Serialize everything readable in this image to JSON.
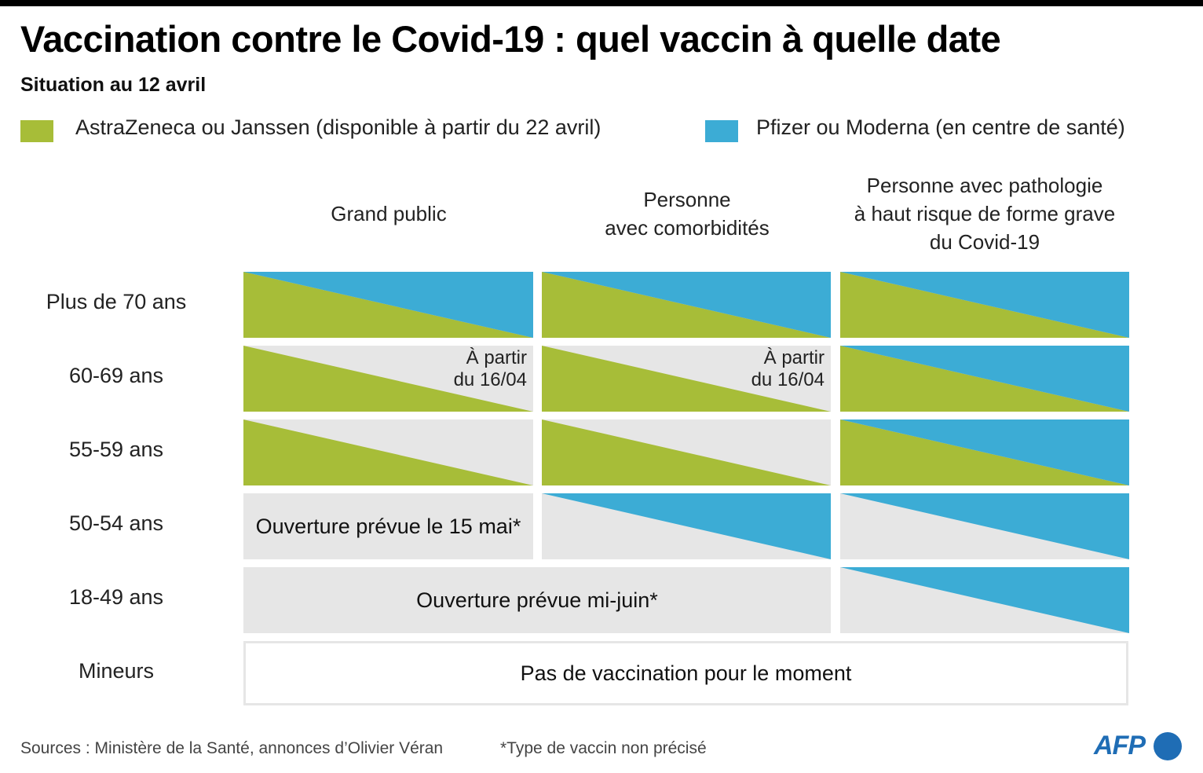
{
  "title": "Vaccination contre le Covid-19 : quel vaccin à quelle date",
  "subtitle": "Situation au 12 avril",
  "colors": {
    "astrazeneca": "#a7bd38",
    "pfizer": "#3cacd5",
    "empty": "#e6e6e6"
  },
  "legend": [
    {
      "label": "AstraZeneca ou Janssen (disponible à partir du 22 avril)",
      "color": "#a7bd38"
    },
    {
      "label": "Pfizer ou Moderna (en centre de santé)",
      "color": "#3cacd5"
    }
  ],
  "columns": [
    "Grand public",
    "Personne\navec comorbidités",
    "Personne avec pathologie\nà haut risque de forme grave\ndu Covid-19"
  ],
  "rows": [
    {
      "label": "Plus de 70 ans",
      "cells": [
        {
          "green": true,
          "blue": true
        },
        {
          "green": true,
          "blue": true
        },
        {
          "green": true,
          "blue": true
        }
      ]
    },
    {
      "label": "60-69 ans",
      "cells": [
        {
          "green": true,
          "blue": false,
          "note": "À partir\ndu 16/04"
        },
        {
          "green": true,
          "blue": false,
          "note": "À partir\ndu 16/04"
        },
        {
          "green": true,
          "blue": true
        }
      ]
    },
    {
      "label": "55-59 ans",
      "cells": [
        {
          "green": true,
          "blue": false
        },
        {
          "green": true,
          "blue": false
        },
        {
          "green": true,
          "blue": true
        }
      ]
    },
    {
      "label": "50-54 ans",
      "cells": [
        {
          "green": false,
          "blue": false,
          "text": "Ouverture prévue le 15 mai*"
        },
        {
          "green": false,
          "blue": true
        },
        {
          "green": false,
          "blue": true
        }
      ]
    },
    {
      "label": "18-49 ans",
      "merged_text": "Ouverture prévue mi-juin*",
      "cells": [
        {
          "green": false,
          "blue": true
        }
      ]
    },
    {
      "label": "Mineurs",
      "text": "Pas de vaccination pour le moment"
    }
  ],
  "footer": {
    "source": "Sources : Ministère de la Santé, annonces d’Olivier Véran",
    "note": "*Type de vaccin non précisé",
    "logo": "AFP"
  }
}
